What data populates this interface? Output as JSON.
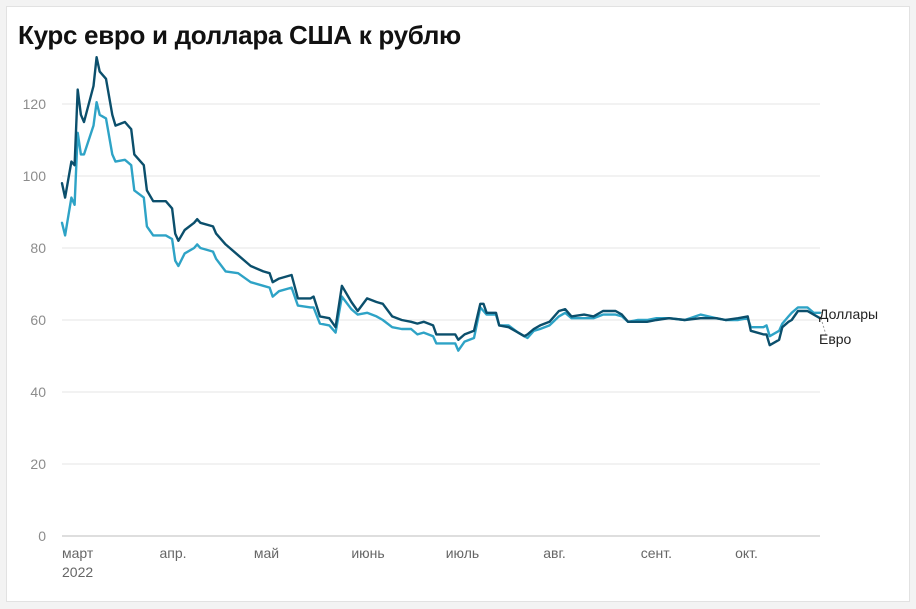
{
  "chart_data": {
    "type": "line",
    "title": "Курс евро и доллара США к рублю",
    "ylim": [
      0,
      135
    ],
    "yticks": [
      0,
      20,
      40,
      60,
      80,
      100,
      120
    ],
    "grid": true,
    "x_domain": [
      "2022-03-01",
      "2022-10-28"
    ],
    "x_ticks": [
      {
        "date": "2022-03-01",
        "label": "март",
        "sublabel": "2022"
      },
      {
        "date": "2022-04-01",
        "label": "апр.",
        "sublabel": ""
      },
      {
        "date": "2022-05-01",
        "label": "май",
        "sublabel": ""
      },
      {
        "date": "2022-06-01",
        "label": "июнь",
        "sublabel": ""
      },
      {
        "date": "2022-07-01",
        "label": "июль",
        "sublabel": ""
      },
      {
        "date": "2022-08-01",
        "label": "авг.",
        "sublabel": ""
      },
      {
        "date": "2022-09-01",
        "label": "сент.",
        "sublabel": ""
      },
      {
        "date": "2022-10-01",
        "label": "окт.",
        "sublabel": ""
      }
    ],
    "legend_placement": "right, at line ends",
    "series": [
      {
        "name": "Евро",
        "color": "#0b4f6c",
        "points": [
          [
            "2022-03-01",
            98
          ],
          [
            "2022-03-02",
            94
          ],
          [
            "2022-03-04",
            104
          ],
          [
            "2022-03-05",
            103
          ],
          [
            "2022-03-06",
            124
          ],
          [
            "2022-03-07",
            117
          ],
          [
            "2022-03-08",
            115
          ],
          [
            "2022-03-11",
            125
          ],
          [
            "2022-03-12",
            133
          ],
          [
            "2022-03-13",
            129
          ],
          [
            "2022-03-15",
            127
          ],
          [
            "2022-03-17",
            117
          ],
          [
            "2022-03-18",
            114
          ],
          [
            "2022-03-21",
            115
          ],
          [
            "2022-03-23",
            113
          ],
          [
            "2022-03-24",
            106
          ],
          [
            "2022-03-27",
            103
          ],
          [
            "2022-03-28",
            96
          ],
          [
            "2022-03-30",
            93
          ],
          [
            "2022-04-03",
            93
          ],
          [
            "2022-04-05",
            91
          ],
          [
            "2022-04-06",
            84
          ],
          [
            "2022-04-07",
            82
          ],
          [
            "2022-04-09",
            85
          ],
          [
            "2022-04-12",
            87
          ],
          [
            "2022-04-13",
            88
          ],
          [
            "2022-04-14",
            87
          ],
          [
            "2022-04-18",
            86
          ],
          [
            "2022-04-19",
            84
          ],
          [
            "2022-04-22",
            81
          ],
          [
            "2022-04-26",
            78
          ],
          [
            "2022-04-30",
            75
          ],
          [
            "2022-05-04",
            73.5
          ],
          [
            "2022-05-06",
            73
          ],
          [
            "2022-05-07",
            70.5
          ],
          [
            "2022-05-09",
            71.5
          ],
          [
            "2022-05-13",
            72.5
          ],
          [
            "2022-05-15",
            66
          ],
          [
            "2022-05-19",
            66
          ],
          [
            "2022-05-20",
            66.5
          ],
          [
            "2022-05-22",
            61
          ],
          [
            "2022-05-25",
            60.5
          ],
          [
            "2022-05-27",
            58
          ],
          [
            "2022-05-29",
            69.5
          ],
          [
            "2022-06-01",
            65
          ],
          [
            "2022-06-03",
            62.5
          ],
          [
            "2022-06-06",
            66
          ],
          [
            "2022-06-09",
            65
          ],
          [
            "2022-06-11",
            64.5
          ],
          [
            "2022-06-14",
            61
          ],
          [
            "2022-06-17",
            60
          ],
          [
            "2022-06-20",
            59.5
          ],
          [
            "2022-06-22",
            59
          ],
          [
            "2022-06-24",
            59.5
          ],
          [
            "2022-06-27",
            58.5
          ],
          [
            "2022-06-28",
            56
          ],
          [
            "2022-07-04",
            56
          ],
          [
            "2022-07-05",
            54.5
          ],
          [
            "2022-07-07",
            56
          ],
          [
            "2022-07-10",
            57
          ],
          [
            "2022-07-12",
            64.5
          ],
          [
            "2022-07-13",
            64.5
          ],
          [
            "2022-07-14",
            62
          ],
          [
            "2022-07-17",
            62
          ],
          [
            "2022-07-18",
            58.5
          ],
          [
            "2022-07-21",
            58
          ],
          [
            "2022-07-24",
            56.5
          ],
          [
            "2022-07-26",
            55.5
          ],
          [
            "2022-07-27",
            56
          ],
          [
            "2022-07-29",
            57.5
          ],
          [
            "2022-07-31",
            58.5
          ],
          [
            "2022-08-03",
            59.5
          ],
          [
            "2022-08-06",
            62.5
          ],
          [
            "2022-08-08",
            63
          ],
          [
            "2022-08-10",
            61
          ],
          [
            "2022-08-14",
            61.5
          ],
          [
            "2022-08-17",
            61
          ],
          [
            "2022-08-20",
            62.5
          ],
          [
            "2022-08-24",
            62.5
          ],
          [
            "2022-08-26",
            61.5
          ],
          [
            "2022-08-28",
            59.5
          ],
          [
            "2022-08-31",
            59.5
          ],
          [
            "2022-09-03",
            59.5
          ],
          [
            "2022-09-06",
            60
          ],
          [
            "2022-09-10",
            60.5
          ],
          [
            "2022-09-15",
            60
          ],
          [
            "2022-09-20",
            60.5
          ],
          [
            "2022-09-25",
            60.5
          ],
          [
            "2022-09-28",
            60
          ],
          [
            "2022-10-02",
            60.5
          ],
          [
            "2022-10-05",
            61
          ],
          [
            "2022-10-06",
            57
          ],
          [
            "2022-10-10",
            56
          ],
          [
            "2022-10-11",
            56
          ],
          [
            "2022-10-12",
            53
          ],
          [
            "2022-10-15",
            54.5
          ],
          [
            "2022-10-16",
            58
          ],
          [
            "2022-10-18",
            59.5
          ],
          [
            "2022-10-19",
            60
          ],
          [
            "2022-10-21",
            62.5
          ],
          [
            "2022-10-24",
            62.5
          ],
          [
            "2022-10-26",
            61.5
          ],
          [
            "2022-10-28",
            60.5
          ]
        ]
      },
      {
        "name": "Доллары",
        "color": "#2ea3c6",
        "points": [
          [
            "2022-03-01",
            87
          ],
          [
            "2022-03-02",
            83.5
          ],
          [
            "2022-03-04",
            94
          ],
          [
            "2022-03-05",
            92
          ],
          [
            "2022-03-06",
            112
          ],
          [
            "2022-03-07",
            106
          ],
          [
            "2022-03-08",
            106
          ],
          [
            "2022-03-11",
            114
          ],
          [
            "2022-03-12",
            120.5
          ],
          [
            "2022-03-13",
            117
          ],
          [
            "2022-03-15",
            116
          ],
          [
            "2022-03-17",
            106
          ],
          [
            "2022-03-18",
            104
          ],
          [
            "2022-03-21",
            104.5
          ],
          [
            "2022-03-23",
            103
          ],
          [
            "2022-03-24",
            96
          ],
          [
            "2022-03-27",
            94
          ],
          [
            "2022-03-28",
            86
          ],
          [
            "2022-03-30",
            83.5
          ],
          [
            "2022-04-03",
            83.5
          ],
          [
            "2022-04-05",
            82.5
          ],
          [
            "2022-04-06",
            76.5
          ],
          [
            "2022-04-07",
            75
          ],
          [
            "2022-04-09",
            78.5
          ],
          [
            "2022-04-12",
            80
          ],
          [
            "2022-04-13",
            81
          ],
          [
            "2022-04-14",
            80
          ],
          [
            "2022-04-18",
            79
          ],
          [
            "2022-04-19",
            77
          ],
          [
            "2022-04-22",
            73.5
          ],
          [
            "2022-04-26",
            73
          ],
          [
            "2022-04-30",
            70.5
          ],
          [
            "2022-05-04",
            69.5
          ],
          [
            "2022-05-06",
            69
          ],
          [
            "2022-05-07",
            66.5
          ],
          [
            "2022-05-09",
            68
          ],
          [
            "2022-05-13",
            69
          ],
          [
            "2022-05-15",
            64
          ],
          [
            "2022-05-19",
            63.5
          ],
          [
            "2022-05-20",
            63.5
          ],
          [
            "2022-05-22",
            59
          ],
          [
            "2022-05-25",
            58.5
          ],
          [
            "2022-05-27",
            56.5
          ],
          [
            "2022-05-29",
            66.5
          ],
          [
            "2022-06-01",
            63
          ],
          [
            "2022-06-03",
            61.5
          ],
          [
            "2022-06-06",
            62
          ],
          [
            "2022-06-09",
            61
          ],
          [
            "2022-06-11",
            60
          ],
          [
            "2022-06-14",
            58
          ],
          [
            "2022-06-17",
            57.5
          ],
          [
            "2022-06-20",
            57.5
          ],
          [
            "2022-06-22",
            56
          ],
          [
            "2022-06-24",
            56.5
          ],
          [
            "2022-06-27",
            55.5
          ],
          [
            "2022-06-28",
            53.5
          ],
          [
            "2022-07-04",
            53.5
          ],
          [
            "2022-07-05",
            51.5
          ],
          [
            "2022-07-07",
            54
          ],
          [
            "2022-07-10",
            55
          ],
          [
            "2022-07-12",
            63.5
          ],
          [
            "2022-07-13",
            62.5
          ],
          [
            "2022-07-14",
            61.5
          ],
          [
            "2022-07-17",
            61.5
          ],
          [
            "2022-07-18",
            58.5
          ],
          [
            "2022-07-21",
            58.5
          ],
          [
            "2022-07-24",
            56.5
          ],
          [
            "2022-07-26",
            55.5
          ],
          [
            "2022-07-27",
            55
          ],
          [
            "2022-07-29",
            57
          ],
          [
            "2022-07-31",
            57.5
          ],
          [
            "2022-08-03",
            58.5
          ],
          [
            "2022-08-06",
            61
          ],
          [
            "2022-08-08",
            62
          ],
          [
            "2022-08-10",
            60.5
          ],
          [
            "2022-08-14",
            60.5
          ],
          [
            "2022-08-17",
            60.5
          ],
          [
            "2022-08-20",
            61.5
          ],
          [
            "2022-08-24",
            61.5
          ],
          [
            "2022-08-26",
            61
          ],
          [
            "2022-08-28",
            59.5
          ],
          [
            "2022-08-31",
            60
          ],
          [
            "2022-09-03",
            60
          ],
          [
            "2022-09-06",
            60.5
          ],
          [
            "2022-09-10",
            60.5
          ],
          [
            "2022-09-15",
            60
          ],
          [
            "2022-09-20",
            61.5
          ],
          [
            "2022-09-25",
            60.5
          ],
          [
            "2022-09-28",
            60
          ],
          [
            "2022-10-02",
            60
          ],
          [
            "2022-10-05",
            60.5
          ],
          [
            "2022-10-06",
            58
          ],
          [
            "2022-10-10",
            58
          ],
          [
            "2022-10-11",
            58.5
          ],
          [
            "2022-10-12",
            55.5
          ],
          [
            "2022-10-15",
            57
          ],
          [
            "2022-10-16",
            59
          ],
          [
            "2022-10-18",
            61
          ],
          [
            "2022-10-19",
            62
          ],
          [
            "2022-10-21",
            63.5
          ],
          [
            "2022-10-24",
            63.5
          ],
          [
            "2022-10-26",
            62
          ],
          [
            "2022-10-28",
            62
          ]
        ]
      }
    ]
  }
}
